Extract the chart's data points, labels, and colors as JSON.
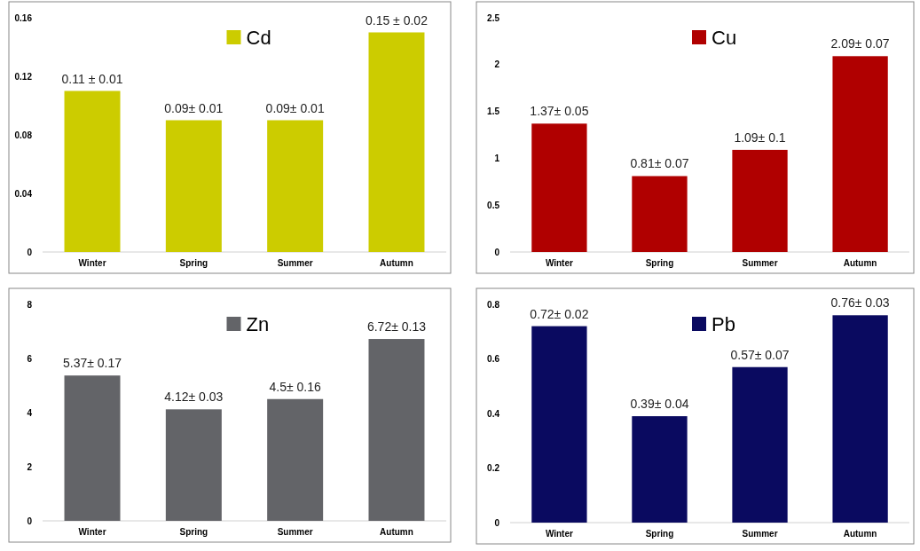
{
  "chart_data": [
    {
      "type": "bar",
      "categories": [
        "Winter",
        "Spring",
        "Summer",
        "Autumn"
      ],
      "series": [
        {
          "name": "Cd",
          "color": "#cccc00",
          "values": [
            0.11,
            0.09,
            0.09,
            0.15
          ],
          "value_labels": [
            "0.11 ± 0.01",
            "0.09± 0.01",
            "0.09± 0.01",
            "0.15 ± 0.02"
          ]
        }
      ],
      "ylim": [
        0,
        0.16
      ],
      "yticks": [
        0,
        0.04,
        0.08,
        0.12,
        0.16
      ],
      "legend": "top",
      "grid": false
    },
    {
      "type": "bar",
      "categories": [
        "Winter",
        "Spring",
        "Summer",
        "Autumn"
      ],
      "series": [
        {
          "name": "Cu",
          "color": "#b00000",
          "values": [
            1.37,
            0.81,
            1.09,
            2.09
          ],
          "value_labels": [
            "1.37± 0.05",
            "0.81± 0.07",
            "1.09± 0.1",
            "2.09± 0.07"
          ]
        }
      ],
      "ylim": [
        0,
        2.5
      ],
      "yticks": [
        0,
        0.5,
        1,
        1.5,
        2,
        2.5
      ],
      "legend": "top",
      "grid": false
    },
    {
      "type": "bar",
      "categories": [
        "Winter",
        "Spring",
        "Summer",
        "Autumn"
      ],
      "series": [
        {
          "name": "Zn",
          "color": "#636468",
          "values": [
            5.37,
            4.12,
            4.5,
            6.72
          ],
          "value_labels": [
            "5.37± 0.17",
            "4.12± 0.03",
            "4.5± 0.16",
            "6.72± 0.13"
          ]
        }
      ],
      "ylim": [
        0,
        8
      ],
      "yticks": [
        0,
        2,
        4,
        6,
        8
      ],
      "legend": "top",
      "grid": false
    },
    {
      "type": "bar",
      "categories": [
        "Winter",
        "Spring",
        "Summer",
        "Autumn"
      ],
      "series": [
        {
          "name": "Pb",
          "color": "#0a0a60",
          "values": [
            0.72,
            0.39,
            0.57,
            0.76
          ],
          "value_labels": [
            "0.72± 0.02",
            "0.39± 0.04",
            "0.57± 0.07",
            "0.76± 0.03"
          ]
        }
      ],
      "ylim": [
        0,
        0.8
      ],
      "yticks": [
        0,
        0.2,
        0.4,
        0.6,
        0.8
      ],
      "legend": "top",
      "grid": false
    }
  ]
}
